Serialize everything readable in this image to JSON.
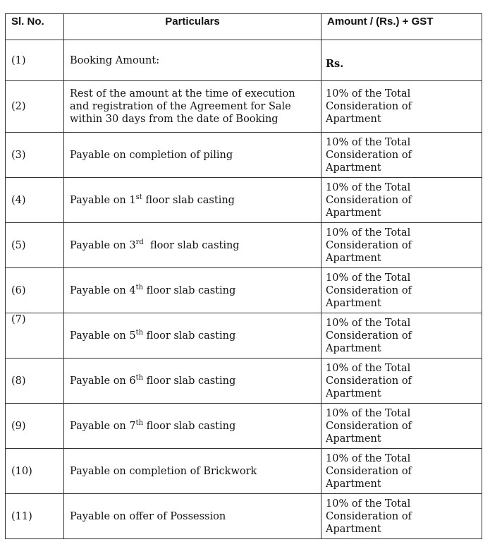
{
  "header": {
    "sl_no": "Sl. No.",
    "particulars": "Particulars",
    "amount": "Amount / (Rs.) + GST"
  },
  "rows": [
    {
      "sl": "(1)",
      "pre": "Booking Amount:",
      "sup": "",
      "post": "",
      "amount": "Rs."
    },
    {
      "sl": "(2)",
      "pre": "Rest of the amount at the time of execution and registration of the Agreement for Sale within 30 days from the date of Booking",
      "sup": "",
      "post": "",
      "amount": "10% of the Total Consideration of Apartment"
    },
    {
      "sl": "(3)",
      "pre": "Payable on completion of piling",
      "sup": "",
      "post": "",
      "amount": "10% of the Total Consideration of Apartment"
    },
    {
      "sl": "(4)",
      "pre": "Payable on 1",
      "sup": "st",
      "post": " floor slab casting",
      "amount": "10% of the Total Consideration of Apartment"
    },
    {
      "sl": "(5)",
      "pre": "Payable on 3",
      "sup": "rd",
      "post": "  floor slab casting",
      "amount": "10% of the Total Consideration of Apartment"
    },
    {
      "sl": "(6)",
      "pre": "Payable on 4",
      "sup": "th",
      "post": " floor slab casting",
      "amount": "10% of the Total Consideration of Apartment"
    },
    {
      "sl": "(7)",
      "pre": "Payable on 5",
      "sup": "th",
      "post": " floor slab casting",
      "amount": "10% of the Total Consideration of Apartment"
    },
    {
      "sl": "(8)",
      "pre": "Payable on 6",
      "sup": "th",
      "post": " floor slab casting",
      "amount": "10% of the Total Consideration of Apartment"
    },
    {
      "sl": "(9)",
      "pre": "Payable on 7",
      "sup": "th",
      "post": " floor slab casting",
      "amount": "10% of the Total Consideration of Apartment"
    },
    {
      "sl": "(10)",
      "pre": "Payable on completion of  Brickwork",
      "sup": "",
      "post": "",
      "amount": "10% of the Total Consideration of Apartment"
    },
    {
      "sl": "(11)",
      "pre": "Payable on offer of Possession",
      "sup": "",
      "post": "",
      "amount": "10% of the Total Consideration of Apartment"
    }
  ]
}
